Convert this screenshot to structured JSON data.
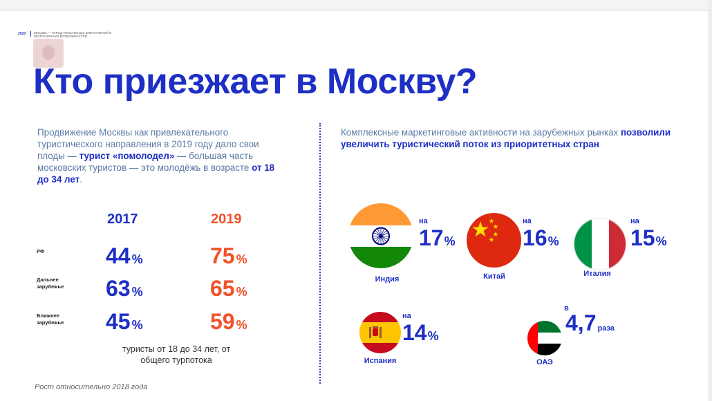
{
  "header": {
    "year": "2020",
    "tagline": "МОСКВА — ГОРОД УНИКАЛЬНЫХ ВПЕЧАТЛЕНИЙ И БЕЗГРАНИЧНЫХ ВОЗМОЖНОСТЕЙ"
  },
  "title": "Кто приезжает в Москву?",
  "left": {
    "lead": {
      "p1": "Продвижение Москвы как привлекательного туристического направления в 2019 году дало свои плоды — ",
      "b1": "турист «помолодел»",
      "p2": " — большая часть московских туристов — это молодёжь в возрасте ",
      "b2": "от 18 до 34 лет",
      "p3": "."
    },
    "years": [
      "2017",
      "2019"
    ],
    "rows": [
      {
        "label": "РФ",
        "v2017": "44",
        "v2019": "75"
      },
      {
        "label": "Дальнее зарубежье",
        "v2017": "63",
        "v2019": "65"
      },
      {
        "label": "Ближнее зарубежье",
        "v2017": "45",
        "v2019": "59"
      }
    ],
    "pct_sign": "%",
    "caption": "туристы от 18 до 34 лет, от общего турпотока",
    "footnote": "Рост относительно 2018 года"
  },
  "right": {
    "lead": {
      "p1": "Комплексные маркетинговые активности на зарубежных рынках ",
      "b1": "позволили увеличить туристический поток из приоритетных стран"
    },
    "countries": [
      {
        "name": "Индия",
        "prefix": "на",
        "value": "17",
        "unit": "%",
        "flag_icon": "india-flag-icon"
      },
      {
        "name": "Китай",
        "prefix": "на",
        "value": "16",
        "unit": "%",
        "flag_icon": "china-flag-icon"
      },
      {
        "name": "Италия",
        "prefix": "на",
        "value": "15",
        "unit": "%",
        "flag_icon": "italy-flag-icon"
      },
      {
        "name": "Испания",
        "prefix": "на",
        "value": "14",
        "unit": "%",
        "flag_icon": "spain-flag-icon"
      },
      {
        "name": "ОАЭ",
        "prefix": "в",
        "value": "4,7",
        "unit": "раза",
        "flag_icon": "uae-flag-icon"
      }
    ]
  },
  "colors": {
    "blue": "#1d2fc4",
    "orange": "#f2522b",
    "lead_text": "#5a7aa6"
  }
}
